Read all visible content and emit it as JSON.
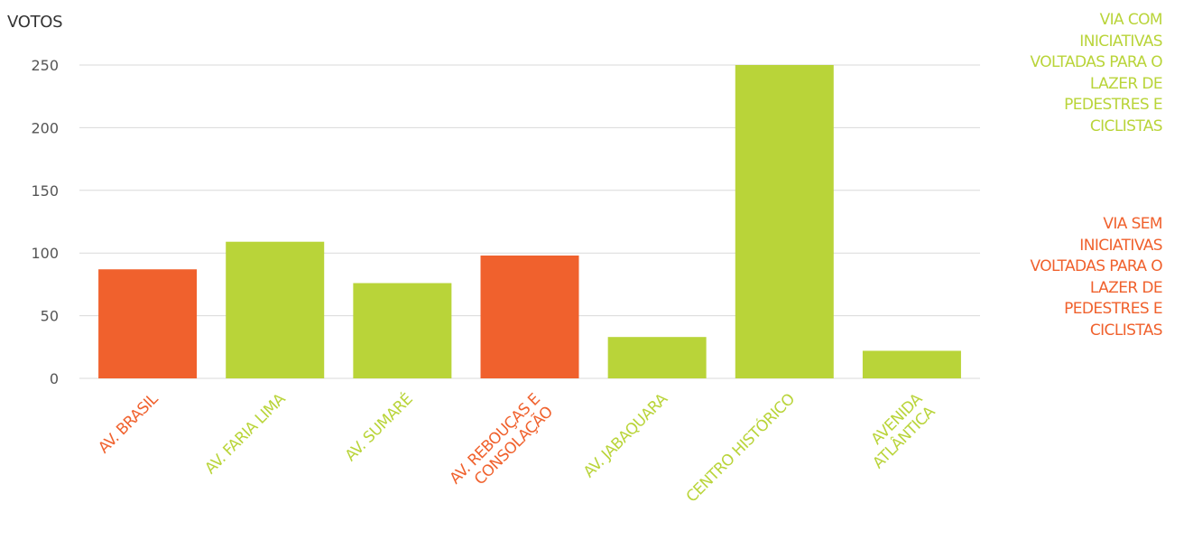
{
  "chart_data": {
    "type": "bar",
    "ylabel": "VOTOS",
    "ylim": [
      0,
      250
    ],
    "yticks": [
      0,
      50,
      100,
      150,
      200,
      250
    ],
    "grid": true,
    "categories": [
      "AV. BRASIL",
      "AV. FARIA LIMA",
      "AV. SUMARÉ",
      "AV. REBOUÇAS E CONSOLAÇÃO",
      "AV. JABAQUARA",
      "CENTRO HISTÓRICO",
      "AVENIDA ATLÂNTICA"
    ],
    "category_lines": [
      [
        "AV. BRASIL"
      ],
      [
        "AV. FARIA LIMA"
      ],
      [
        "AV. SUMARÉ"
      ],
      [
        "AV. REBOUÇAS E",
        "CONSOLAÇÃO"
      ],
      [
        "AV. JABAQUARA"
      ],
      [
        "CENTRO HISTÓRICO"
      ],
      [
        "AVENIDA",
        "ATLÂNTICA"
      ]
    ],
    "values": [
      87,
      109,
      76,
      98,
      33,
      250,
      22
    ],
    "groups": [
      "sem",
      "com",
      "com",
      "sem",
      "com",
      "com",
      "com"
    ],
    "colors": {
      "com": "#b9d439",
      "sem": "#f0612d"
    },
    "legend": {
      "position": "right",
      "com": "VIA COM INICIATIVAS VOLTADAS PARA O LAZER DE PEDESTRES E CICLISTAS",
      "sem": "VIA SEM INICIATIVAS VOLTADAS PARA O LAZER DE PEDESTRES E CICLISTAS"
    }
  }
}
